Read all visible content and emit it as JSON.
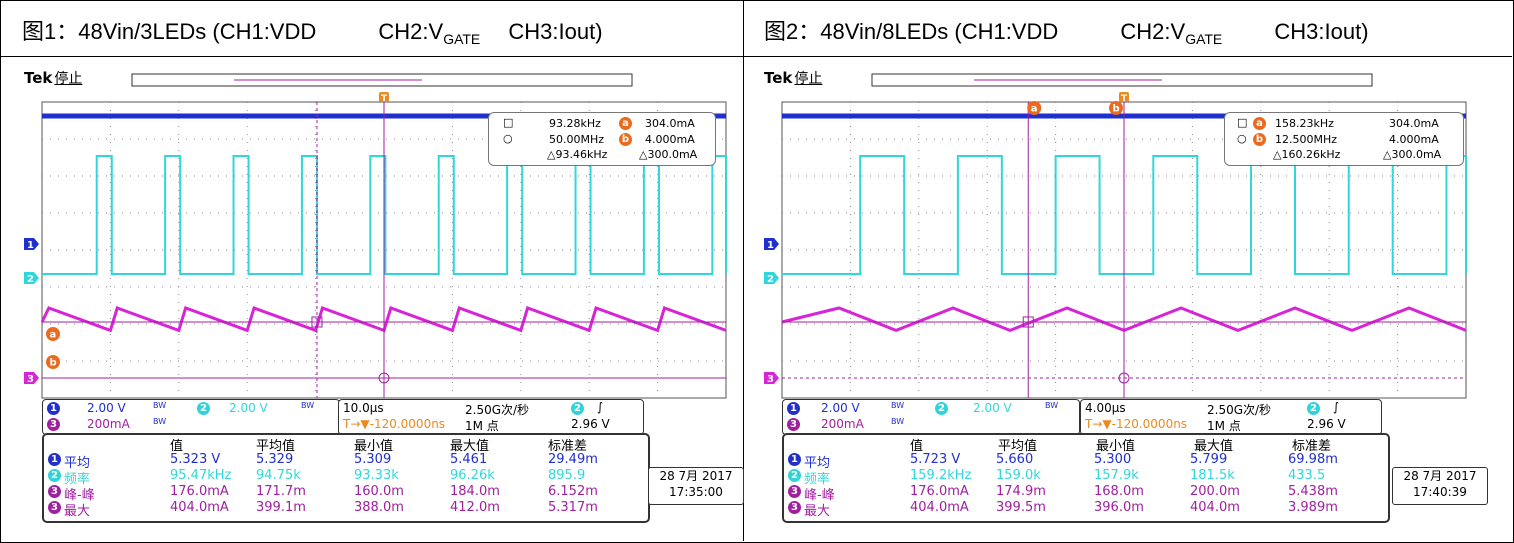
{
  "figure1": {
    "caption_prefix": "图1：48Vin/3LEDs (CH1:VDD",
    "caption_ch2": "CH2:V",
    "caption_ch2_sub": "GATE",
    "caption_ch3": "CH3:Iout)",
    "brand": "Tek",
    "state": "停止",
    "trigger_marker": "T",
    "cursor_a_label": "a",
    "cursor_b_label": "b",
    "ch1_marker": "1",
    "ch2_marker": "2",
    "ch3_marker": "3",
    "cursor_readout": {
      "freq_a": "93.28kHz",
      "val_a": "304.0mA",
      "freq_b": "50.00MHz",
      "val_b": "4.000mA",
      "delta_freq": "△93.46kHz",
      "delta_val": "△300.0mA"
    },
    "channels": {
      "ch1_num": "1",
      "ch1_scale": "2.00 V",
      "ch1_bw": "BW",
      "ch2_num": "2",
      "ch2_scale": "2.00 V",
      "ch2_bw": "BW",
      "ch3_num": "3",
      "ch3_scale": "200mA",
      "ch3_bw": "BW"
    },
    "timebase": {
      "time_div": "10.0μs",
      "sample_rate": "2.50G次/秒",
      "trig_ch": "2",
      "trig_slope": "∫",
      "trig_pos": "T→▼-120.0000ns",
      "record": "1M 点",
      "trig_level": "2.96 V"
    },
    "measurements": {
      "headers": [
        "值",
        "平均值",
        "最小值",
        "最大值",
        "标准差"
      ],
      "rows": [
        {
          "ch": "1",
          "name": "平均",
          "cells": [
            "5.323 V",
            "5.329",
            "5.309",
            "5.461",
            "29.49m"
          ]
        },
        {
          "ch": "2",
          "name": "频率",
          "cells": [
            "95.47kHz",
            "94.75k",
            "93.33k",
            "96.26k",
            "895.9"
          ]
        },
        {
          "ch": "3",
          "name": "峰-峰",
          "cells": [
            "176.0mA",
            "171.7m",
            "160.0m",
            "184.0m",
            "6.152m"
          ]
        },
        {
          "ch": "3",
          "name": "最大",
          "cells": [
            "404.0mA",
            "399.1m",
            "388.0m",
            "412.0m",
            "5.317m"
          ]
        }
      ]
    },
    "date": "28 7月 2017",
    "time": "17:35:00"
  },
  "figure2": {
    "caption_prefix": "图2：48Vin/8LEDs (CH1:VDD",
    "caption_ch2": "CH2:V",
    "caption_ch2_sub": "GATE",
    "caption_ch3": "CH3:Iout)",
    "brand": "Tek",
    "state": "停止",
    "trigger_marker": "T",
    "cursor_a_label": "a",
    "cursor_b_label": "b",
    "ch1_marker": "1",
    "ch2_marker": "2",
    "ch3_marker": "3",
    "cursor_readout": {
      "freq_a": "158.23kHz",
      "val_a": "304.0mA",
      "freq_b": "12.500MHz",
      "val_b": "4.000mA",
      "delta_freq": "△160.26kHz",
      "delta_val": "△300.0mA"
    },
    "channels": {
      "ch1_num": "1",
      "ch1_scale": "2.00 V",
      "ch1_bw": "BW",
      "ch2_num": "2",
      "ch2_scale": "2.00 V",
      "ch2_bw": "BW",
      "ch3_num": "3",
      "ch3_scale": "200mA",
      "ch3_bw": "BW"
    },
    "timebase": {
      "time_div": "4.00μs",
      "sample_rate": "2.50G次/秒",
      "trig_ch": "2",
      "trig_slope": "∫",
      "trig_pos": "T→▼-120.0000ns",
      "record": "1M 点",
      "trig_level": "2.96 V"
    },
    "measurements": {
      "headers": [
        "值",
        "平均值",
        "最小值",
        "最大值",
        "标准差"
      ],
      "rows": [
        {
          "ch": "1",
          "name": "平均",
          "cells": [
            "5.723 V",
            "5.660",
            "5.300",
            "5.799",
            "69.98m"
          ]
        },
        {
          "ch": "2",
          "name": "频率",
          "cells": [
            "159.2kHz",
            "159.0k",
            "157.9k",
            "181.5k",
            "433.5"
          ]
        },
        {
          "ch": "3",
          "name": "峰-峰",
          "cells": [
            "176.0mA",
            "174.9m",
            "168.0m",
            "200.0m",
            "5.438m"
          ]
        },
        {
          "ch": "3",
          "name": "最大",
          "cells": [
            "404.0mA",
            "399.5m",
            "396.0m",
            "404.0m",
            "3.989m"
          ]
        }
      ]
    },
    "date": "28 7月 2017",
    "time": "17:40:39"
  },
  "chart_data": [
    {
      "type": "line",
      "title": "图1：48Vin/3LEDs (CH1:VDD CH2:VGATE CH3:Iout)",
      "xlabel": "time (10.0μs/div)",
      "ylabel": "",
      "x_divisions": 10,
      "y_divisions": 8,
      "series": [
        {
          "name": "CH1 VDD",
          "color": "#1f2fd0",
          "mean_value": "5.323 V"
        },
        {
          "name": "CH2 VGATE",
          "color": "#2fd7dc",
          "frequency": "95.47kHz",
          "pulses_visible": 10
        },
        {
          "name": "CH3 Iout",
          "color": "#d624d6",
          "peak_to_peak": "176.0mA",
          "max": "404.0mA",
          "ramps_visible": 10
        }
      ],
      "cursors": {
        "a": "304.0mA",
        "b": "4.000mA",
        "delta": "300.0mA"
      }
    },
    {
      "type": "line",
      "title": "图2：48Vin/8LEDs (CH1:VDD CH2:VGATE CH3:Iout)",
      "xlabel": "time (4.00μs/div)",
      "ylabel": "",
      "x_divisions": 10,
      "y_divisions": 8,
      "series": [
        {
          "name": "CH1 VDD",
          "color": "#1f2fd0",
          "mean_value": "5.723 V"
        },
        {
          "name": "CH2 VGATE",
          "color": "#2fd7dc",
          "frequency": "159.2kHz",
          "pulses_visible": 7
        },
        {
          "name": "CH3 Iout",
          "color": "#d624d6",
          "peak_to_peak": "176.0mA",
          "max": "404.0mA",
          "ramps_visible": 6
        }
      ],
      "cursors": {
        "a": "304.0mA",
        "b": "4.000mA",
        "delta": "300.0mA"
      }
    }
  ]
}
